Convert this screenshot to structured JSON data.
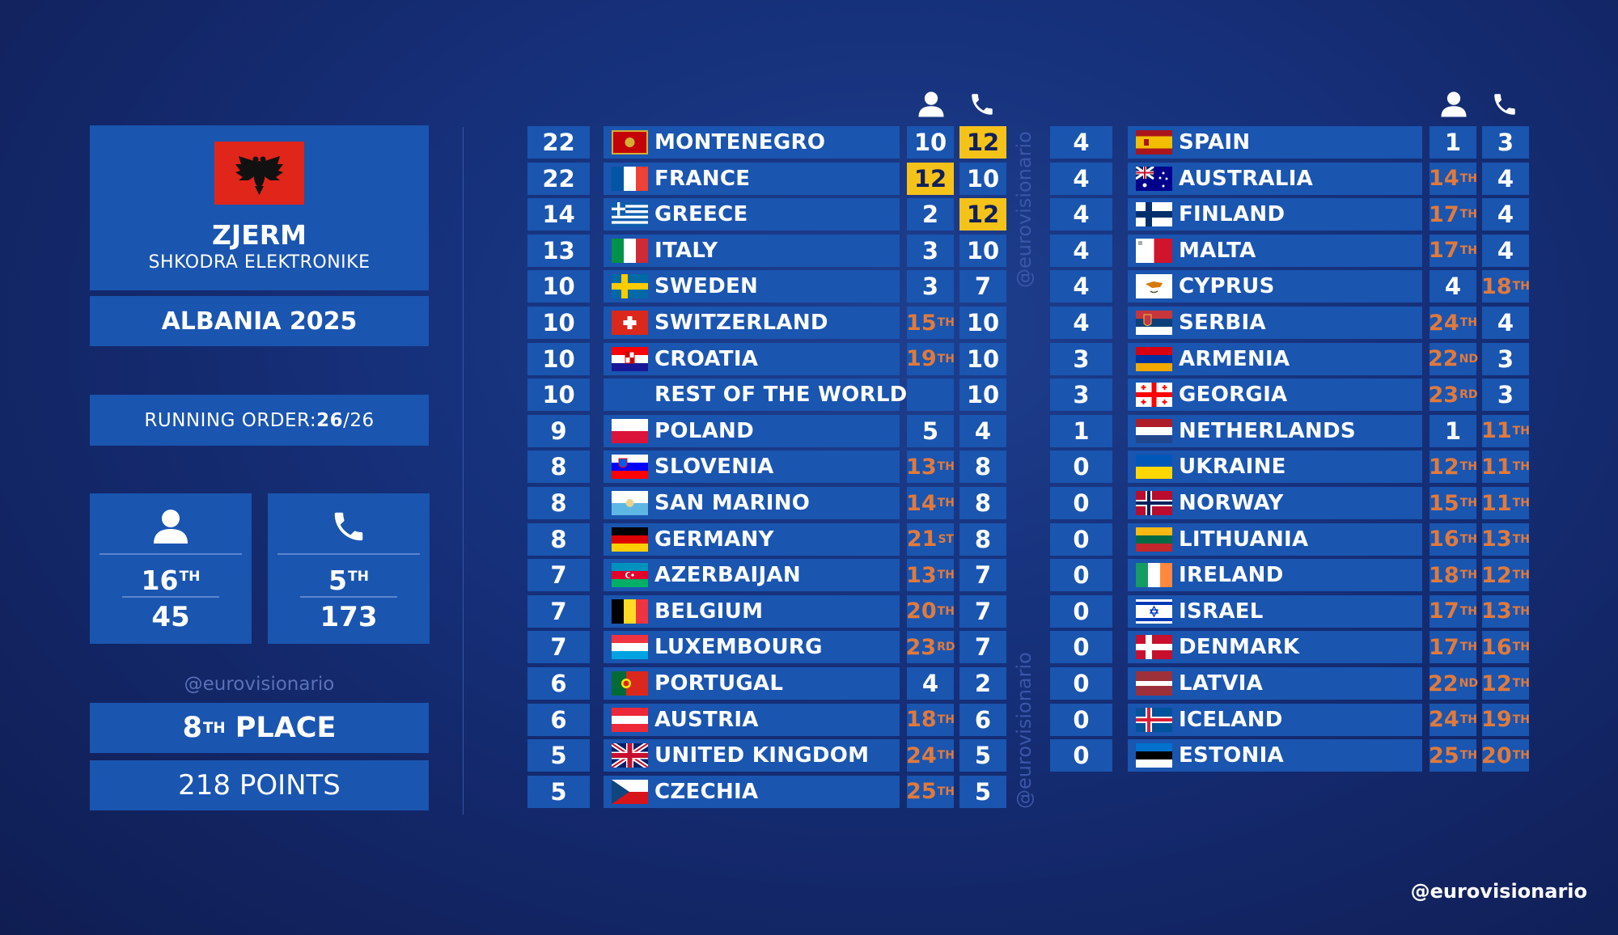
{
  "artist": {
    "name": "ZJERM",
    "song": "SHKODRA ELEKTRONIKE",
    "country_year": "ALBANIA 2025",
    "flag_colors": [
      "#e0251b",
      "#111111"
    ]
  },
  "running_order": {
    "label": "RUNNING ORDER: ",
    "value": "26",
    "total": "/26"
  },
  "jury": {
    "icon": "person-icon",
    "rank": "16",
    "rank_suffix": "TH",
    "points": "45"
  },
  "televote": {
    "icon": "phone-icon",
    "rank": "5",
    "rank_suffix": "TH",
    "points": "173"
  },
  "watermark": "@eurovisionario",
  "result": {
    "place": "8",
    "place_suffix": "TH",
    "place_label": " PLACE",
    "points": "218 POINTS"
  },
  "colors": {
    "panel": "#1a55b0",
    "highlight": "#f5c21a",
    "rank_text": "#e07a3c"
  },
  "table_left": [
    {
      "total": "22",
      "country": "MONTENEGRO",
      "flag": "montenegro",
      "jury": "10",
      "tele": "12",
      "tele_hl": true
    },
    {
      "total": "22",
      "country": "FRANCE",
      "flag": "france",
      "jury": "12",
      "jury_hl": true,
      "tele": "10"
    },
    {
      "total": "14",
      "country": "GREECE",
      "flag": "greece",
      "jury": "2",
      "tele": "12",
      "tele_hl": true
    },
    {
      "total": "13",
      "country": "ITALY",
      "flag": "italy",
      "jury": "3",
      "tele": "10"
    },
    {
      "total": "10",
      "country": "SWEDEN",
      "flag": "sweden",
      "jury": "3",
      "tele": "7"
    },
    {
      "total": "10",
      "country": "SWITZERLAND",
      "flag": "switzerland",
      "jury": "15",
      "jury_sfx": "TH",
      "tele": "10"
    },
    {
      "total": "10",
      "country": "CROATIA",
      "flag": "croatia",
      "jury": "19",
      "jury_sfx": "TH",
      "tele": "10"
    },
    {
      "total": "10",
      "country": "REST OF THE WORLD",
      "flag": "none",
      "jury": "",
      "tele": "10"
    },
    {
      "total": "9",
      "country": "POLAND",
      "flag": "poland",
      "jury": "5",
      "tele": "4"
    },
    {
      "total": "8",
      "country": "SLOVENIA",
      "flag": "slovenia",
      "jury": "13",
      "jury_sfx": "TH",
      "tele": "8"
    },
    {
      "total": "8",
      "country": "SAN MARINO",
      "flag": "sanmarino",
      "jury": "14",
      "jury_sfx": "TH",
      "tele": "8"
    },
    {
      "total": "8",
      "country": "GERMANY",
      "flag": "germany",
      "jury": "21",
      "jury_sfx": "ST",
      "tele": "8"
    },
    {
      "total": "7",
      "country": "AZERBAIJAN",
      "flag": "azerbaijan",
      "jury": "13",
      "jury_sfx": "TH",
      "tele": "7"
    },
    {
      "total": "7",
      "country": "BELGIUM",
      "flag": "belgium",
      "jury": "20",
      "jury_sfx": "TH",
      "tele": "7"
    },
    {
      "total": "7",
      "country": "LUXEMBOURG",
      "flag": "luxembourg",
      "jury": "23",
      "jury_sfx": "RD",
      "tele": "7"
    },
    {
      "total": "6",
      "country": "PORTUGAL",
      "flag": "portugal",
      "jury": "4",
      "tele": "2"
    },
    {
      "total": "6",
      "country": "AUSTRIA",
      "flag": "austria",
      "jury": "18",
      "jury_sfx": "TH",
      "tele": "6"
    },
    {
      "total": "5",
      "country": "UNITED KINGDOM",
      "flag": "uk",
      "jury": "24",
      "jury_sfx": "TH",
      "tele": "5"
    },
    {
      "total": "5",
      "country": "CZECHIA",
      "flag": "czechia",
      "jury": "25",
      "jury_sfx": "TH",
      "tele": "5"
    }
  ],
  "table_right": [
    {
      "total": "4",
      "country": "SPAIN",
      "flag": "spain",
      "jury": "1",
      "tele": "3"
    },
    {
      "total": "4",
      "country": "AUSTRALIA",
      "flag": "australia",
      "jury": "14",
      "jury_sfx": "TH",
      "tele": "4"
    },
    {
      "total": "4",
      "country": "FINLAND",
      "flag": "finland",
      "jury": "17",
      "jury_sfx": "TH",
      "tele": "4"
    },
    {
      "total": "4",
      "country": "MALTA",
      "flag": "malta",
      "jury": "17",
      "jury_sfx": "TH",
      "tele": "4"
    },
    {
      "total": "4",
      "country": "CYPRUS",
      "flag": "cyprus",
      "jury": "4",
      "tele": "18",
      "tele_sfx": "TH"
    },
    {
      "total": "4",
      "country": "SERBIA",
      "flag": "serbia",
      "jury": "24",
      "jury_sfx": "TH",
      "tele": "4"
    },
    {
      "total": "3",
      "country": "ARMENIA",
      "flag": "armenia",
      "jury": "22",
      "jury_sfx": "ND",
      "tele": "3"
    },
    {
      "total": "3",
      "country": "GEORGIA",
      "flag": "georgia",
      "jury": "23",
      "jury_sfx": "RD",
      "tele": "3"
    },
    {
      "total": "1",
      "country": "NETHERLANDS",
      "flag": "netherlands",
      "jury": "1",
      "tele": "11",
      "tele_sfx": "TH"
    },
    {
      "total": "0",
      "country": "UKRAINE",
      "flag": "ukraine",
      "jury": "12",
      "jury_sfx": "TH",
      "tele": "11",
      "tele_sfx": "TH"
    },
    {
      "total": "0",
      "country": "NORWAY",
      "flag": "norway",
      "jury": "15",
      "jury_sfx": "TH",
      "tele": "11",
      "tele_sfx": "TH"
    },
    {
      "total": "0",
      "country": "LITHUANIA",
      "flag": "lithuania",
      "jury": "16",
      "jury_sfx": "TH",
      "tele": "13",
      "tele_sfx": "TH"
    },
    {
      "total": "0",
      "country": "IRELAND",
      "flag": "ireland",
      "jury": "18",
      "jury_sfx": "TH",
      "tele": "12",
      "tele_sfx": "TH"
    },
    {
      "total": "0",
      "country": "ISRAEL",
      "flag": "israel",
      "jury": "17",
      "jury_sfx": "TH",
      "tele": "13",
      "tele_sfx": "TH"
    },
    {
      "total": "0",
      "country": "DENMARK",
      "flag": "denmark",
      "jury": "17",
      "jury_sfx": "TH",
      "tele": "16",
      "tele_sfx": "TH"
    },
    {
      "total": "0",
      "country": "LATVIA",
      "flag": "latvia",
      "jury": "22",
      "jury_sfx": "ND",
      "tele": "12",
      "tele_sfx": "TH"
    },
    {
      "total": "0",
      "country": "ICELAND",
      "flag": "iceland",
      "jury": "24",
      "jury_sfx": "TH",
      "tele": "19",
      "tele_sfx": "TH"
    },
    {
      "total": "0",
      "country": "ESTONIA",
      "flag": "estonia",
      "jury": "25",
      "jury_sfx": "TH",
      "tele": "20",
      "tele_sfx": "TH"
    }
  ],
  "credit": "@eurovisionario"
}
